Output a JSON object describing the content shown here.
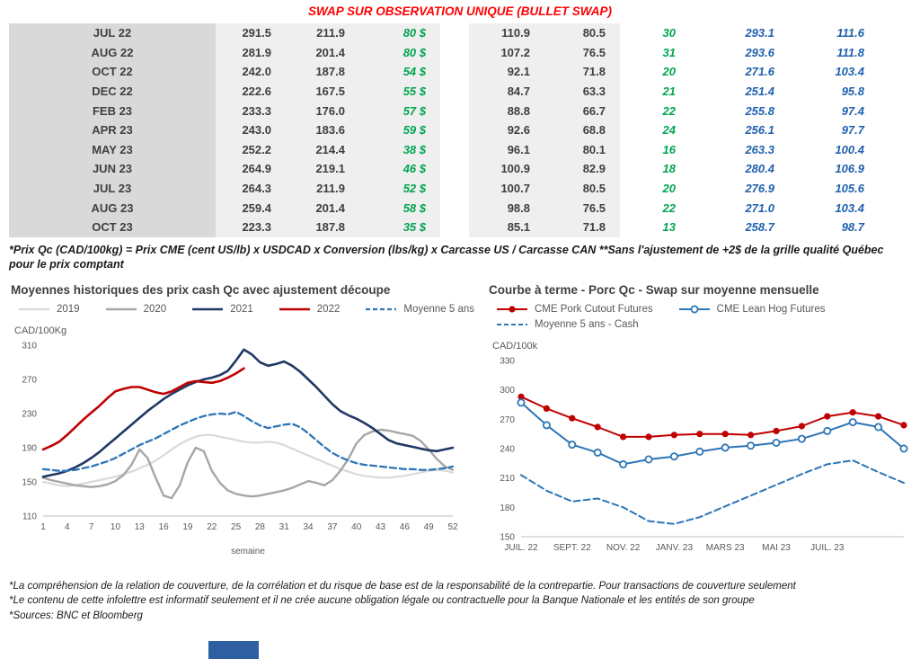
{
  "title": "SWAP SUR OBSERVATION UNIQUE (BULLET SWAP)",
  "colors": {
    "title_red": "#FF0000",
    "table_green": "#00A550",
    "table_blue": "#2061AE",
    "month_col_gray": "#D9D9D9",
    "data_col_gray": "#EFEFEF"
  },
  "table": {
    "rows": [
      [
        "JUL 22",
        "291.5",
        "211.9",
        "80 $",
        "110.9",
        "80.5",
        "30",
        "293.1",
        "111.6"
      ],
      [
        "AUG 22",
        "281.9",
        "201.4",
        "80 $",
        "107.2",
        "76.5",
        "31",
        "293.6",
        "111.8"
      ],
      [
        "OCT 22",
        "242.0",
        "187.8",
        "54 $",
        "92.1",
        "71.8",
        "20",
        "271.6",
        "103.4"
      ],
      [
        "DEC 22",
        "222.6",
        "167.5",
        "55 $",
        "84.7",
        "63.3",
        "21",
        "251.4",
        "95.8"
      ],
      [
        "FEB 23",
        "233.3",
        "176.0",
        "57 $",
        "88.8",
        "66.7",
        "22",
        "255.8",
        "97.4"
      ],
      [
        "APR 23",
        "243.0",
        "183.6",
        "59 $",
        "92.6",
        "68.8",
        "24",
        "256.1",
        "97.7"
      ],
      [
        "MAY 23",
        "252.2",
        "214.4",
        "38 $",
        "96.1",
        "80.1",
        "16",
        "263.3",
        "100.4"
      ],
      [
        "JUN 23",
        "264.9",
        "219.1",
        "46 $",
        "100.9",
        "82.9",
        "18",
        "280.4",
        "106.9"
      ],
      [
        "JUL 23",
        "264.3",
        "211.9",
        "52 $",
        "100.7",
        "80.5",
        "20",
        "276.9",
        "105.6"
      ],
      [
        "AUG 23",
        "259.4",
        "201.4",
        "58 $",
        "98.8",
        "76.5",
        "22",
        "271.0",
        "103.4"
      ],
      [
        "OCT 23",
        "223.3",
        "187.8",
        "35 $",
        "85.1",
        "71.8",
        "13",
        "258.7",
        "98.7"
      ]
    ]
  },
  "table_note": "*Prix Qc (CAD/100kg) = Prix CME (cent US/lb) x USDCAD x Conversion (lbs/kg) x Carcasse US / Carcasse CAN **Sans l'ajustement de +2$ de la grille qualité Québec pour le prix comptant",
  "footnotes": [
    "*La compréhension de la relation de couverture, de la corrélation et du risque de base est de la responsabilité de la contrepartie. Pour transactions de couverture seulement",
    "*Le contenu de cette infolettre est informatif seulement et il ne crée aucune obligation légale ou contractuelle pour la Banque Nationale et les entités de son groupe",
    "*Sources: BNC et Bloomberg"
  ],
  "chart_data": [
    {
      "type": "line",
      "title": "Moyennes historiques des prix cash Qc avec ajustement découpe",
      "ylabel": "CAD/100Kg",
      "xlabel": "semaine",
      "ylim": [
        110,
        310
      ],
      "yticks": [
        110,
        150,
        190,
        230,
        270,
        310
      ],
      "xticks": [
        1,
        4,
        7,
        10,
        13,
        16,
        19,
        22,
        25,
        28,
        31,
        34,
        37,
        40,
        43,
        46,
        49,
        52
      ],
      "grid": false,
      "legend_position": "top",
      "series": [
        {
          "name": "2019",
          "color": "#D9D9D9",
          "dash": false,
          "width": 2.2,
          "x_start": 1,
          "values": [
            150,
            148,
            146,
            145,
            146,
            148,
            150,
            152,
            154,
            156,
            159,
            162,
            166,
            170,
            175,
            181,
            188,
            194,
            199,
            203,
            205,
            205,
            203,
            201,
            199,
            197,
            196,
            196,
            197,
            196,
            193,
            189,
            185,
            181,
            177,
            173,
            169,
            165,
            162,
            159,
            157,
            156,
            155,
            155,
            156,
            157,
            159,
            161,
            163,
            164,
            163,
            161
          ]
        },
        {
          "name": "2020",
          "color": "#A6A6A6",
          "dash": false,
          "width": 2.4,
          "x_start": 1,
          "values": [
            155,
            152,
            150,
            148,
            146,
            145,
            144,
            145,
            147,
            151,
            158,
            170,
            188,
            178,
            155,
            134,
            131,
            146,
            173,
            190,
            186,
            163,
            149,
            140,
            136,
            134,
            133,
            134,
            136,
            138,
            140,
            143,
            147,
            151,
            149,
            146,
            152,
            163,
            177,
            195,
            205,
            209,
            211,
            210,
            208,
            206,
            204,
            198,
            188,
            177,
            168,
            164
          ]
        },
        {
          "name": "2021",
          "color": "#1F3864",
          "dash": false,
          "width": 2.6,
          "x_start": 1,
          "values": [
            156,
            158,
            160,
            163,
            167,
            172,
            178,
            185,
            193,
            201,
            209,
            217,
            225,
            233,
            240,
            247,
            253,
            258,
            263,
            267,
            270,
            272,
            275,
            280,
            292,
            305,
            299,
            290,
            286,
            288,
            291,
            286,
            279,
            270,
            261,
            251,
            241,
            233,
            228,
            224,
            219,
            213,
            206,
            199,
            195,
            193,
            191,
            189,
            187,
            186,
            188,
            190
          ]
        },
        {
          "name": "2022",
          "color": "#C00000",
          "dash": false,
          "width": 2.6,
          "x_start": 1,
          "values": [
            188,
            192,
            197,
            205,
            214,
            223,
            231,
            239,
            248,
            256,
            259,
            261,
            261,
            258,
            255,
            253,
            256,
            261,
            266,
            268,
            267,
            266,
            268,
            272,
            277,
            283
          ]
        },
        {
          "name": "Moyenne 5 ans",
          "color": "#2E75B6",
          "dash": true,
          "width": 2.3,
          "x_start": 1,
          "values": [
            165,
            164,
            163,
            163,
            164,
            166,
            168,
            171,
            174,
            178,
            183,
            188,
            193,
            197,
            201,
            206,
            211,
            216,
            220,
            224,
            227,
            229,
            230,
            229,
            232,
            227,
            221,
            216,
            213,
            215,
            217,
            218,
            214,
            207,
            199,
            191,
            184,
            179,
            175,
            172,
            170,
            169,
            168,
            167,
            166,
            165,
            165,
            164,
            164,
            165,
            166,
            168
          ]
        }
      ]
    },
    {
      "type": "line",
      "title": "Courbe à terme - Porc Qc - Swap sur moyenne mensuelle",
      "ylabel": "CAD/100k",
      "xlabel": "",
      "ylim": [
        150,
        330
      ],
      "yticks": [
        150,
        180,
        210,
        240,
        270,
        300,
        330
      ],
      "xtick_indices": [
        0,
        2,
        4,
        6,
        8,
        10,
        12
      ],
      "xtick_labels": [
        "JUIL. 22",
        "SEPT. 22",
        "NOV. 22",
        "JANV. 23",
        "MARS 23",
        "MAI 23",
        "JUIL. 23"
      ],
      "grid": false,
      "legend_position": "top",
      "legend_rows": [
        [
          0,
          1
        ],
        [
          2
        ]
      ],
      "series": [
        {
          "name": "CME Pork Cutout Futures",
          "color": "#C00000",
          "dash": false,
          "width": 2,
          "marker": "filled",
          "values": [
            293,
            281,
            271,
            262,
            252,
            252,
            254,
            255,
            255,
            254,
            258,
            263,
            273,
            277,
            273,
            264
          ]
        },
        {
          "name": "CME Lean Hog Futures",
          "color": "#2E75B6",
          "dash": false,
          "width": 2,
          "marker": "open",
          "values": [
            287,
            264,
            244,
            236,
            224,
            229,
            232,
            237,
            241,
            243,
            246,
            250,
            258,
            267,
            262,
            240
          ]
        },
        {
          "name": "Moyenne 5 ans - Cash",
          "color": "#2E75B6",
          "dash": true,
          "width": 2,
          "values": [
            213,
            197,
            186,
            189,
            180,
            166,
            163,
            170,
            181,
            192,
            203,
            214,
            224,
            228,
            216,
            205
          ]
        }
      ]
    }
  ]
}
